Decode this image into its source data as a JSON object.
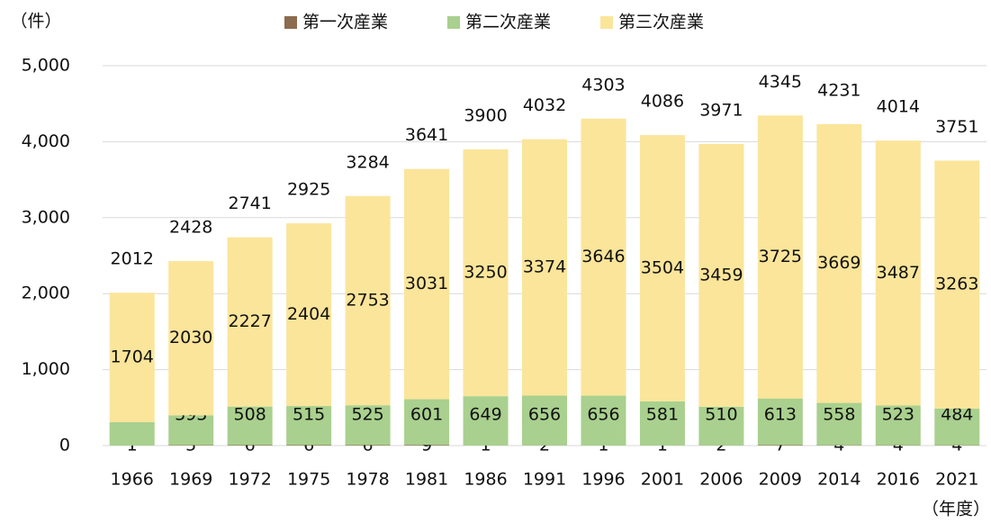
{
  "chart_data": {
    "type": "stacked_bar",
    "y_unit": "（件）",
    "x_unit": "（年度）",
    "categories": [
      "1966",
      "1969",
      "1972",
      "1975",
      "1978",
      "1981",
      "1986",
      "1991",
      "1996",
      "2001",
      "2006",
      "2009",
      "2014",
      "2016",
      "2021"
    ],
    "series": [
      {
        "name": "第一次産業",
        "color": "#8c6b4f",
        "values": [
          1,
          5,
          6,
          6,
          6,
          9,
          1,
          2,
          1,
          1,
          2,
          7,
          4,
          4,
          4
        ]
      },
      {
        "name": "第二次産業",
        "color": "#a9d08e",
        "values": [
          307,
          393,
          508,
          515,
          525,
          601,
          649,
          656,
          656,
          581,
          510,
          613,
          558,
          523,
          484
        ]
      },
      {
        "name": "第三次産業",
        "color": "#fae59a",
        "values": [
          1704,
          2030,
          2227,
          2404,
          2753,
          3031,
          3250,
          3374,
          3646,
          3504,
          3459,
          3725,
          3669,
          3487,
          3263
        ]
      }
    ],
    "totals": [
      2012,
      2428,
      2741,
      2925,
      3284,
      3641,
      3900,
      4032,
      4303,
      4086,
      3971,
      4345,
      4231,
      4014,
      3751
    ],
    "ylim": [
      0,
      5000
    ],
    "yticks": [
      0,
      {
        "value": 1000,
        "label": "1,000"
      },
      {
        "value": 2000,
        "label": "2,000"
      },
      {
        "value": 3000,
        "label": "3,000"
      },
      {
        "value": 4000,
        "label": "4,000"
      },
      {
        "value": 5000,
        "label": "5,000"
      }
    ],
    "grid": true,
    "legend": "top"
  }
}
